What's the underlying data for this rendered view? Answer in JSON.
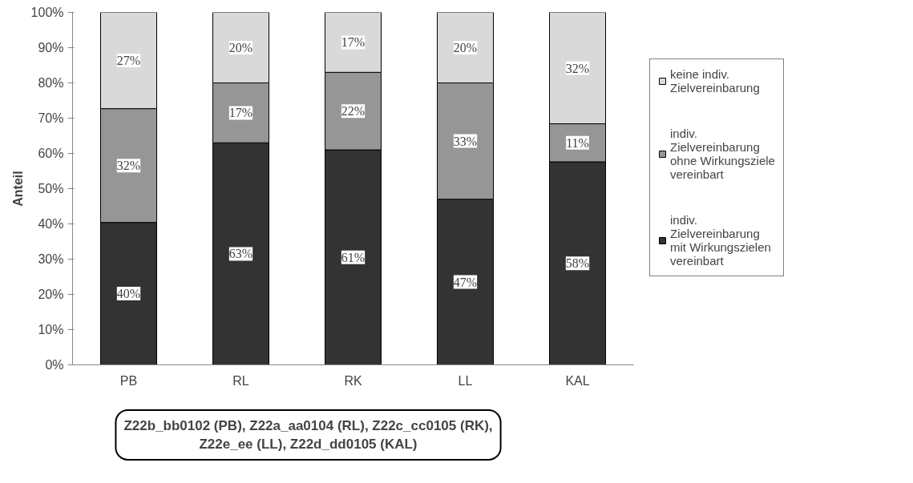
{
  "chart_data": {
    "type": "bar",
    "stacked": true,
    "categories": [
      "PB",
      "RL",
      "RK",
      "LL",
      "KAL"
    ],
    "series": [
      {
        "name": "indiv. Zielvereinbarung mit Wirkungszielen vereinbart",
        "color": "#333333",
        "values": [
          40.4,
          63,
          61,
          47,
          57.6
        ],
        "value_labels": [
          "40%",
          "63%",
          "61%",
          "47%",
          "58%"
        ]
      },
      {
        "name": "indiv. Zielvereinbarung ohne Wirkungsziele vereinbart",
        "color": "#969696",
        "values": [
          32.3,
          17,
          22,
          33,
          10.8
        ],
        "value_labels": [
          "32%",
          "17%",
          "22%",
          "33%",
          "11%"
        ]
      },
      {
        "name": "keine indiv. Zielvereinbarung",
        "color": "#d9d9d9",
        "values": [
          27.3,
          20,
          17,
          20,
          31.6
        ],
        "value_labels": [
          "27%",
          "20%",
          "17%",
          "20%",
          "32%"
        ]
      }
    ],
    "ylabel": "Anteil",
    "ylim": [
      0,
      100
    ],
    "yticks": [
      {
        "value": 0,
        "label": "0%"
      },
      {
        "value": 10,
        "label": "10%"
      },
      {
        "value": 20,
        "label": "20%"
      },
      {
        "value": 30,
        "label": "30%"
      },
      {
        "value": 40,
        "label": "40%"
      },
      {
        "value": 50,
        "label": "50%"
      },
      {
        "value": 60,
        "label": "60%"
      },
      {
        "value": 70,
        "label": "70%"
      },
      {
        "value": 80,
        "label": "80%"
      },
      {
        "value": 90,
        "label": "90%"
      },
      {
        "value": 100,
        "label": "100%"
      }
    ],
    "grid": false,
    "legend": "right",
    "annotations": [
      "Z22b_bb0102 (PB), Z22a_aa0104 (RL), Z22c_cc0105 (RK), Z22e_ee (LL), Z22d_dd0105 (KAL)"
    ]
  }
}
